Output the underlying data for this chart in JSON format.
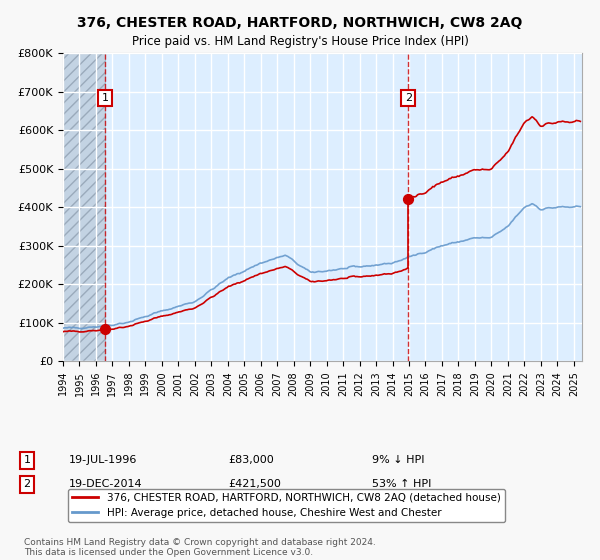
{
  "title": "376, CHESTER ROAD, HARTFORD, NORTHWICH, CW8 2AQ",
  "subtitle": "Price paid vs. HM Land Registry's House Price Index (HPI)",
  "legend_line1": "376, CHESTER ROAD, HARTFORD, NORTHWICH, CW8 2AQ (detached house)",
  "legend_line2": "HPI: Average price, detached house, Cheshire West and Chester",
  "footnote": "Contains HM Land Registry data © Crown copyright and database right 2024.\nThis data is licensed under the Open Government Licence v3.0.",
  "transaction1": {
    "date_num": 1996.55,
    "price": 83000,
    "label": "1",
    "info": "19-JUL-1996",
    "price_str": "£83,000",
    "hpi_str": "9% ↓ HPI"
  },
  "transaction2": {
    "date_num": 2014.96,
    "price": 421500,
    "label": "2",
    "info": "19-DEC-2014",
    "price_str": "£421,500",
    "hpi_str": "53% ↑ HPI"
  },
  "hpi_color": "#6699cc",
  "price_color": "#cc0000",
  "bg_color": "#ddeeff",
  "grid_color": "#ffffff",
  "ylim": [
    0,
    800000
  ],
  "xlim_start": 1994.0,
  "xlim_end": 2025.5
}
